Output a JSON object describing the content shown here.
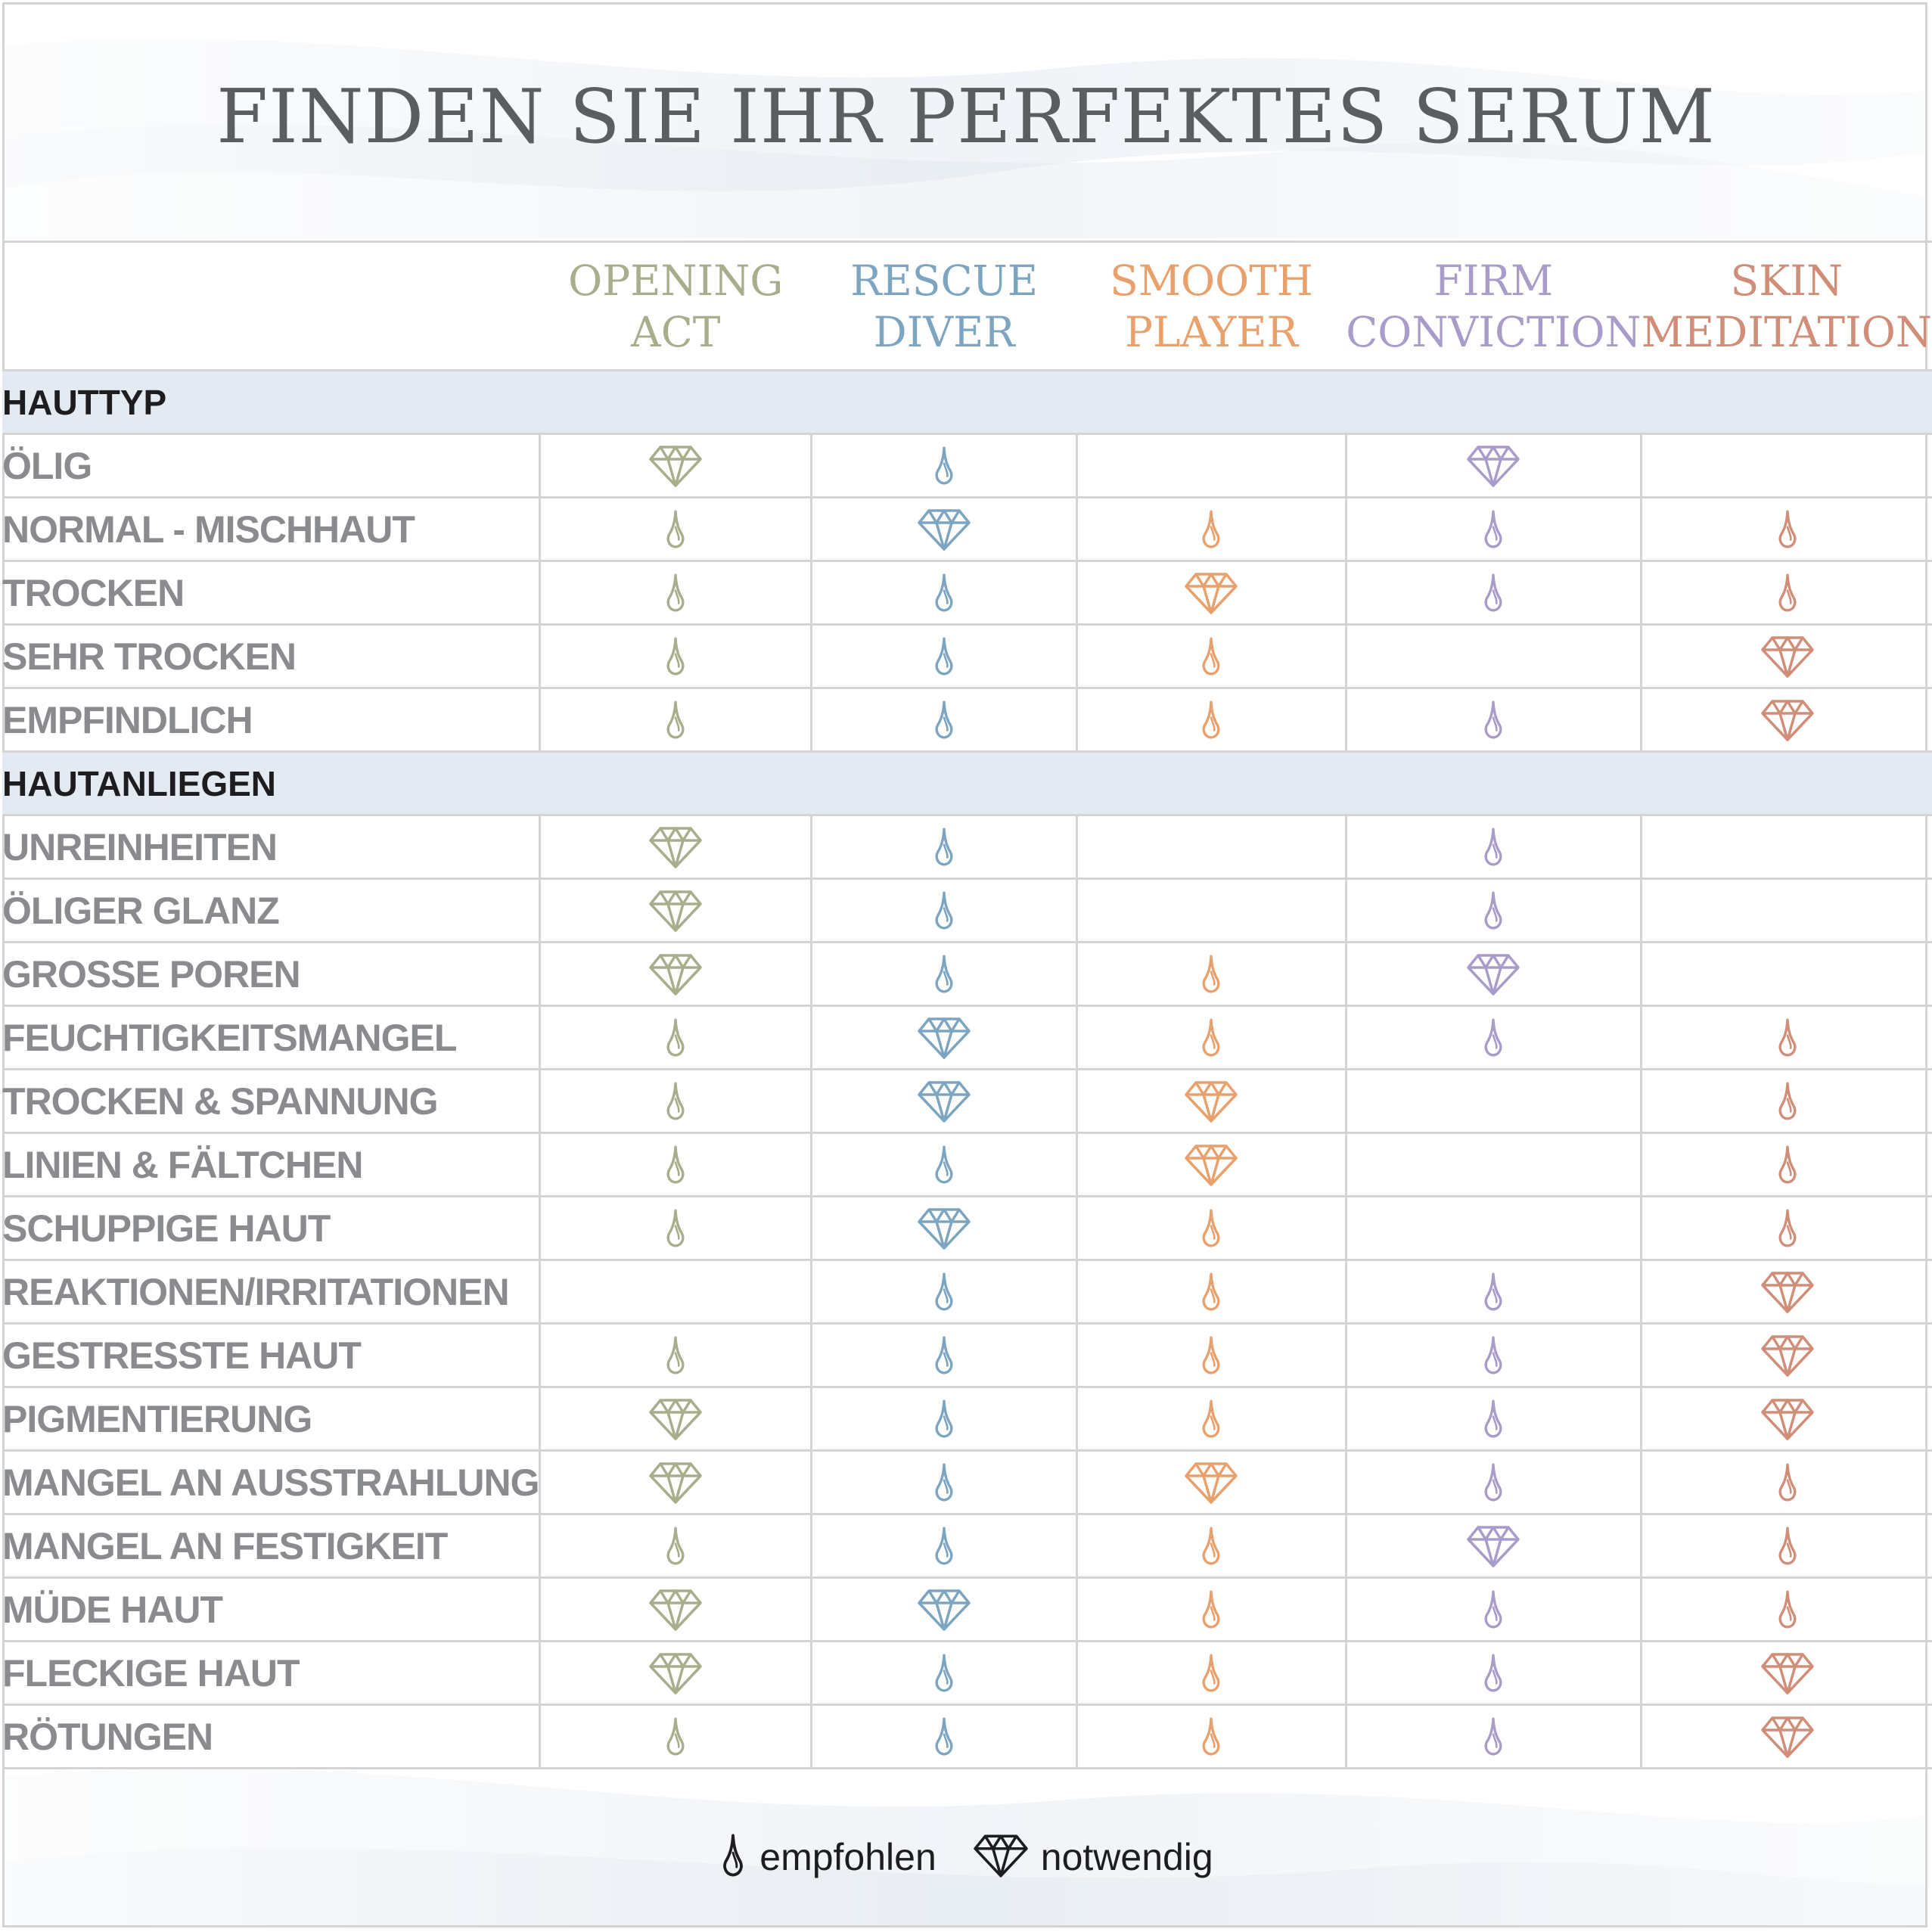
{
  "title": "FINDEN SIE IHR PERFEKTES SERUM",
  "columns": [
    {
      "line1": "OPENING",
      "line2": "ACT",
      "color": "#a8ae8c"
    },
    {
      "line1": "RESCUE",
      "line2": "DIVER",
      "color": "#7ca5c2"
    },
    {
      "line1": "SMOOTH",
      "line2": "PLAYER",
      "color": "#e9a06b"
    },
    {
      "line1": "FIRM",
      "line2": "CONVICTION",
      "color": "#a99ccb"
    },
    {
      "line1": "SKIN",
      "line2": "MEDITATION",
      "color": "#d08d77"
    }
  ],
  "sections": [
    {
      "name": "HAUTTYP",
      "rows": [
        {
          "label": "ÖLIG",
          "marks": [
            "diamond",
            "drop",
            "",
            "diamond",
            ""
          ]
        },
        {
          "label": "NORMAL - MISCHHAUT",
          "marks": [
            "drop",
            "diamond",
            "drop",
            "drop",
            "drop"
          ]
        },
        {
          "label": "TROCKEN",
          "marks": [
            "drop",
            "drop",
            "diamond",
            "drop",
            "drop"
          ]
        },
        {
          "label": "SEHR TROCKEN",
          "marks": [
            "drop",
            "drop",
            "drop",
            "",
            "diamond"
          ]
        },
        {
          "label": "EMPFINDLICH",
          "marks": [
            "drop",
            "drop",
            "drop",
            "drop",
            "diamond"
          ]
        }
      ]
    },
    {
      "name": "HAUTANLIEGEN",
      "rows": [
        {
          "label": "UNREINHEITEN",
          "marks": [
            "diamond",
            "drop",
            "",
            "drop",
            ""
          ]
        },
        {
          "label": "ÖLIGER GLANZ",
          "marks": [
            "diamond",
            "drop",
            "",
            "drop",
            ""
          ]
        },
        {
          "label": "GROSSE POREN",
          "marks": [
            "diamond",
            "drop",
            "drop",
            "diamond",
            ""
          ]
        },
        {
          "label": "FEUCHTIGKEITSMANGEL",
          "marks": [
            "drop",
            "diamond",
            "drop",
            "drop",
            "drop"
          ]
        },
        {
          "label": "TROCKEN & SPANNUNG",
          "marks": [
            "drop",
            "diamond",
            "diamond",
            "",
            "drop"
          ]
        },
        {
          "label": "LINIEN & FÄLTCHEN",
          "marks": [
            "drop",
            "drop",
            "diamond",
            "",
            "drop"
          ]
        },
        {
          "label": "SCHUPPIGE HAUT",
          "marks": [
            "drop",
            "diamond",
            "drop",
            "",
            "drop"
          ]
        },
        {
          "label": "REAKTIONEN/IRRITATIONEN",
          "marks": [
            "",
            "drop",
            "drop",
            "drop",
            "diamond"
          ]
        },
        {
          "label": "GESTRESSTE HAUT",
          "marks": [
            "drop",
            "drop",
            "drop",
            "drop",
            "diamond"
          ]
        },
        {
          "label": "PIGMENTIERUNG",
          "marks": [
            "diamond",
            "drop",
            "drop",
            "drop",
            "diamond"
          ]
        },
        {
          "label": "MANGEL AN AUSSTRAHLUNG",
          "marks": [
            "diamond",
            "drop",
            "diamond",
            "drop",
            "drop"
          ]
        },
        {
          "label": "MANGEL AN FESTIGKEIT",
          "marks": [
            "drop",
            "drop",
            "drop",
            "diamond",
            "drop"
          ]
        },
        {
          "label": "MÜDE HAUT",
          "marks": [
            "diamond",
            "diamond",
            "drop",
            "drop",
            "drop"
          ]
        },
        {
          "label": "FLECKIGE HAUT",
          "marks": [
            "diamond",
            "drop",
            "drop",
            "drop",
            "diamond"
          ]
        },
        {
          "label": "RÖTUNGEN",
          "marks": [
            "drop",
            "drop",
            "drop",
            "drop",
            "diamond"
          ]
        }
      ]
    }
  ],
  "legend": {
    "recommended": {
      "icon": "drop-icon",
      "label": "empfohlen"
    },
    "necessary": {
      "icon": "diamond-icon",
      "label": "notwendig"
    },
    "color": "#1d1d1f"
  }
}
